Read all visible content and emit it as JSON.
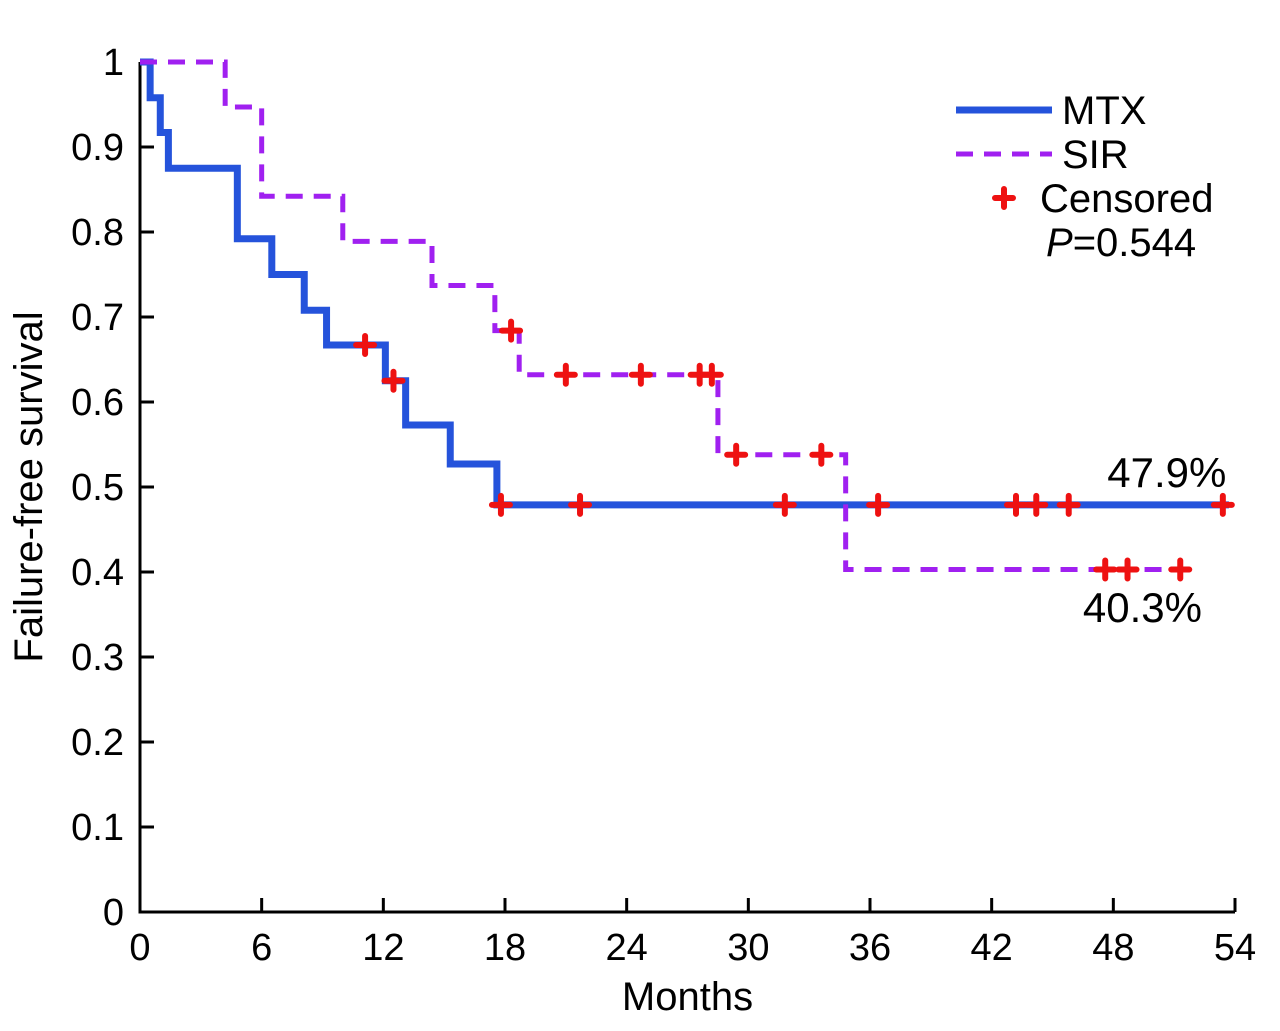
{
  "chart_data": {
    "type": "line",
    "subtype": "kaplan-meier-step",
    "title": "",
    "xlabel": "Months",
    "ylabel": "Failure-free survival",
    "xlim": [
      0,
      54
    ],
    "ylim": [
      0,
      1
    ],
    "xticks": [
      0,
      6,
      12,
      18,
      24,
      30,
      36,
      42,
      48,
      54
    ],
    "yticks": [
      0,
      0.1,
      0.2,
      0.3,
      0.4,
      0.5,
      0.6,
      0.7,
      0.8,
      0.9,
      1
    ],
    "ytick_labels": [
      "0",
      "0.1",
      "0.2",
      "0.3",
      "0.4",
      "0.5",
      "0.6",
      "0.7",
      "0.8",
      "0.9",
      "1"
    ],
    "grid": false,
    "legend_position": "top-right",
    "axis_color": "#000000",
    "censored_color": "#ee1111",
    "series": [
      {
        "name": "MTX",
        "color": "#2553db",
        "style": "solid",
        "steps": [
          [
            0,
            1.0
          ],
          [
            0.5,
            0.958
          ],
          [
            1.0,
            0.917
          ],
          [
            1.4,
            0.875
          ],
          [
            4.8,
            0.792
          ],
          [
            6.5,
            0.75
          ],
          [
            8.1,
            0.708
          ],
          [
            9.2,
            0.667
          ],
          [
            12.1,
            0.625
          ],
          [
            13.1,
            0.573
          ],
          [
            15.3,
            0.527
          ],
          [
            17.6,
            0.479
          ]
        ],
        "end_month": 53.7,
        "censored": [
          [
            11.1,
            0.667
          ],
          [
            12.5,
            0.625
          ],
          [
            17.8,
            0.479
          ],
          [
            21.7,
            0.479
          ],
          [
            31.8,
            0.479
          ],
          [
            36.4,
            0.479
          ],
          [
            43.2,
            0.479
          ],
          [
            44.2,
            0.479
          ],
          [
            45.8,
            0.479
          ],
          [
            53.4,
            0.479
          ]
        ],
        "final_survival_label": "47.9%"
      },
      {
        "name": "SIR",
        "color": "#a020f0",
        "style": "dashed",
        "steps": [
          [
            0,
            1.0
          ],
          [
            4.2,
            0.947
          ],
          [
            6.0,
            0.842
          ],
          [
            10.0,
            0.789
          ],
          [
            14.4,
            0.737
          ],
          [
            17.5,
            0.684
          ],
          [
            18.7,
            0.632
          ],
          [
            28.5,
            0.538
          ],
          [
            34.8,
            0.403
          ]
        ],
        "end_month": 51.5,
        "censored": [
          [
            18.3,
            0.684
          ],
          [
            21.0,
            0.632
          ],
          [
            24.7,
            0.632
          ],
          [
            27.6,
            0.632
          ],
          [
            28.2,
            0.632
          ],
          [
            29.4,
            0.538
          ],
          [
            33.6,
            0.538
          ],
          [
            47.6,
            0.403
          ],
          [
            48.7,
            0.403
          ],
          [
            51.3,
            0.403
          ]
        ],
        "final_survival_label": "40.3%"
      }
    ],
    "legend": {
      "entries": [
        {
          "label": "MTX",
          "swatch": "solid-line",
          "color": "#2553db"
        },
        {
          "label": "SIR",
          "swatch": "dashed-line",
          "color": "#a020f0"
        },
        {
          "label": "Censored",
          "swatch": "plus-marker",
          "color": "#ee1111"
        }
      ],
      "p_value_label": "P=0.544"
    },
    "annotations": [
      {
        "text": "47.9%",
        "month": 47.7,
        "survival": 0.5
      },
      {
        "text": "40.3%",
        "month": 46.5,
        "survival": 0.341
      }
    ]
  }
}
